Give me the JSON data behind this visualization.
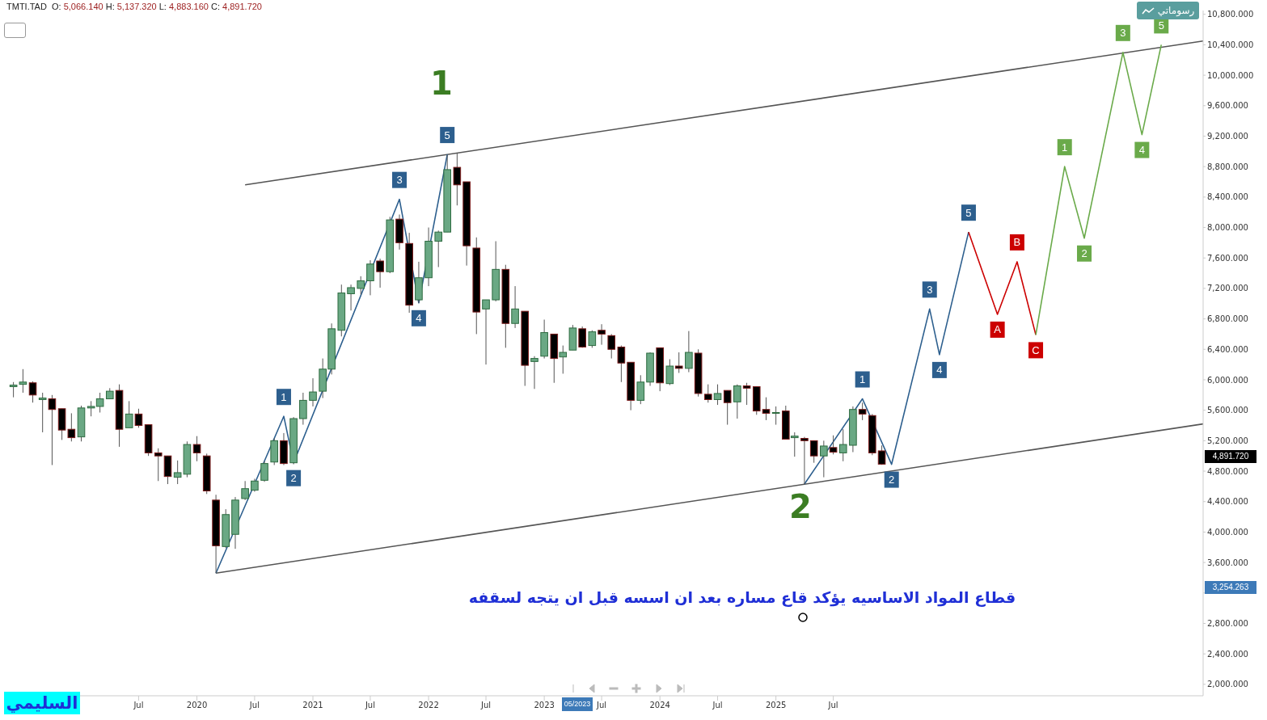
{
  "chart_data": {
    "type": "candlestick",
    "title": "TMTI.TAD  O: 5,066.140 H: 5,137.320 L: 4,883.160 C: 4,891.720",
    "x": [
      "2018-06",
      "2018-07",
      "2018-08",
      "2018-09",
      "2018-10",
      "2018-11",
      "2018-12",
      "2019-01",
      "2019-02",
      "2019-03",
      "2019-04",
      "2019-05",
      "2019-06",
      "2019-07",
      "2019-08",
      "2019-09",
      "2019-10",
      "2019-11",
      "2019-12",
      "2020-01",
      "2020-02",
      "2020-03",
      "2020-04",
      "2020-05",
      "2020-06",
      "2020-07",
      "2020-08",
      "2020-09",
      "2020-10",
      "2020-11",
      "2020-12",
      "2021-01",
      "2021-02",
      "2021-03",
      "2021-04",
      "2021-05",
      "2021-06",
      "2021-07",
      "2021-08",
      "2021-09",
      "2021-10",
      "2021-11",
      "2021-12",
      "2022-01",
      "2022-02",
      "2022-03",
      "2022-04",
      "2022-05",
      "2022-06",
      "2022-07",
      "2022-08",
      "2022-09",
      "2022-10",
      "2022-11",
      "2022-12",
      "2023-01",
      "2023-02",
      "2023-03",
      "2023-04",
      "2023-05",
      "2023-06",
      "2023-07",
      "2023-08",
      "2023-09",
      "2023-10",
      "2023-11",
      "2023-12",
      "2024-01",
      "2024-02",
      "2024-03",
      "2024-04",
      "2024-05",
      "2024-06",
      "2024-07",
      "2024-08",
      "2024-09",
      "2024-10",
      "2024-11",
      "2024-12",
      "2025-01",
      "2025-02",
      "2025-03",
      "2025-04",
      "2025-05",
      "2025-06",
      "2025-07",
      "2025-08",
      "2025-09",
      "2025-10",
      "2025-11",
      "2025-12"
    ],
    "ohlc": [
      [
        5910,
        5970,
        5770,
        5930
      ],
      [
        5940,
        6140,
        5830,
        5970
      ],
      [
        5960,
        5980,
        5700,
        5800
      ],
      [
        5740,
        5830,
        5310,
        5760
      ],
      [
        5750,
        5800,
        4880,
        5610
      ],
      [
        5620,
        5620,
        5210,
        5340
      ],
      [
        5350,
        5560,
        5190,
        5240
      ],
      [
        5250,
        5660,
        5190,
        5630
      ],
      [
        5630,
        5720,
        5520,
        5650
      ],
      [
        5650,
        5830,
        5570,
        5750
      ],
      [
        5750,
        5890,
        5750,
        5850
      ],
      [
        5860,
        5940,
        5120,
        5350
      ],
      [
        5370,
        5720,
        5370,
        5550
      ],
      [
        5550,
        5620,
        5370,
        5400
      ],
      [
        5410,
        5410,
        5000,
        5040
      ],
      [
        5040,
        5100,
        4670,
        5000
      ],
      [
        5000,
        5000,
        4630,
        4730
      ],
      [
        4720,
        4940,
        4630,
        4780
      ],
      [
        4760,
        5190,
        4720,
        5150
      ],
      [
        5150,
        5260,
        4930,
        5040
      ],
      [
        5000,
        5030,
        4500,
        4540
      ],
      [
        4420,
        4490,
        3460,
        3820
      ],
      [
        3810,
        4300,
        3790,
        4230
      ],
      [
        3970,
        4460,
        3780,
        4420
      ],
      [
        4440,
        4670,
        4420,
        4570
      ],
      [
        4550,
        4700,
        4530,
        4670
      ],
      [
        4680,
        4930,
        4660,
        4900
      ],
      [
        4920,
        5230,
        4880,
        5200
      ],
      [
        5200,
        5300,
        4880,
        4900
      ],
      [
        4910,
        5510,
        4890,
        5490
      ],
      [
        5490,
        5830,
        5410,
        5730
      ],
      [
        5730,
        6020,
        5650,
        5840
      ],
      [
        5850,
        6280,
        5760,
        6140
      ],
      [
        6140,
        6740,
        6070,
        6670
      ],
      [
        6650,
        7250,
        6570,
        7140
      ],
      [
        7130,
        7250,
        6910,
        7210
      ],
      [
        7200,
        7360,
        7120,
        7300
      ],
      [
        7300,
        7570,
        7110,
        7520
      ],
      [
        7560,
        7590,
        7210,
        7420
      ],
      [
        7420,
        8140,
        7400,
        8100
      ],
      [
        8110,
        8170,
        7710,
        7800
      ],
      [
        7790,
        7930,
        6880,
        6980
      ],
      [
        7050,
        7550,
        7010,
        7340
      ],
      [
        7340,
        8000,
        7230,
        7820
      ],
      [
        7820,
        7960,
        7480,
        7940
      ],
      [
        7940,
        8950,
        7940,
        8760
      ],
      [
        8790,
        8980,
        8290,
        8560
      ],
      [
        8600,
        8600,
        7500,
        7760
      ],
      [
        7730,
        7870,
        6600,
        6890
      ],
      [
        6930,
        7050,
        6200,
        7050
      ],
      [
        7050,
        7820,
        7030,
        7450
      ],
      [
        7450,
        7510,
        6420,
        6740
      ],
      [
        6740,
        7230,
        6680,
        6930
      ],
      [
        6900,
        6900,
        5920,
        6190
      ],
      [
        6240,
        6310,
        5880,
        6280
      ],
      [
        6310,
        6790,
        6280,
        6620
      ],
      [
        6600,
        6600,
        5960,
        6280
      ],
      [
        6300,
        6450,
        6080,
        6360
      ],
      [
        6390,
        6720,
        6390,
        6680
      ],
      [
        6670,
        6700,
        6420,
        6430
      ],
      [
        6450,
        6650,
        6420,
        6630
      ],
      [
        6650,
        6730,
        6460,
        6600
      ],
      [
        6580,
        6600,
        6280,
        6400
      ],
      [
        6430,
        6450,
        5970,
        6220
      ],
      [
        6230,
        6230,
        5600,
        5730
      ],
      [
        5730,
        6060,
        5680,
        5970
      ],
      [
        5970,
        6360,
        5920,
        6350
      ],
      [
        6420,
        6420,
        5850,
        5960
      ],
      [
        5950,
        6270,
        5930,
        6180
      ],
      [
        6180,
        6360,
        6090,
        6150
      ],
      [
        6150,
        6640,
        6100,
        6360
      ],
      [
        6350,
        6400,
        5780,
        5820
      ],
      [
        5810,
        5940,
        5700,
        5740
      ],
      [
        5740,
        5940,
        5670,
        5820
      ],
      [
        5860,
        5860,
        5410,
        5700
      ],
      [
        5710,
        5940,
        5490,
        5920
      ],
      [
        5920,
        5960,
        5670,
        5890
      ],
      [
        5910,
        5910,
        5540,
        5590
      ],
      [
        5610,
        5770,
        5470,
        5560
      ],
      [
        5560,
        5650,
        5410,
        5570
      ],
      [
        5590,
        5660,
        5220,
        5220
      ],
      [
        5240,
        5310,
        4990,
        5260
      ],
      [
        5230,
        5250,
        4630,
        5200
      ],
      [
        5200,
        5200,
        4910,
        5000
      ],
      [
        5000,
        5200,
        4720,
        5130
      ],
      [
        5110,
        5270,
        5020,
        5050
      ],
      [
        5040,
        5350,
        4930,
        5150
      ],
      [
        5140,
        5650,
        5050,
        5610
      ],
      [
        5610,
        5700,
        5470,
        5550
      ],
      [
        5530,
        5550,
        5010,
        5040
      ],
      [
        5066.14,
        5137.32,
        4883.16,
        4891.72
      ]
    ],
    "series": [
      {
        "type": "line",
        "color": "#555555",
        "x": [
          "2020-06",
          "2028-09-10"
        ],
        "values": [
          8560,
          10450
        ]
      },
      {
        "type": "line",
        "color": "#555555",
        "x": [
          "2020-03",
          "2028-09-10"
        ],
        "values": [
          3460,
          5420
        ]
      },
      {
        "type": "line",
        "color": "#2d5f8e",
        "x": [
          "2020-03",
          "2020-10",
          "2020-11",
          "2021-10",
          "2021-12",
          "2022-03"
        ],
        "values": [
          3460,
          5520,
          4910,
          8370,
          7010,
          8960
        ]
      },
      {
        "type": "line",
        "color": "#2d5f8e",
        "x": [
          "2025-04",
          "2025-10",
          "2026-01",
          "2026-05",
          "2026-06",
          "2026-09"
        ],
        "values": [
          4630,
          5750,
          4890,
          6930,
          6330,
          7940
        ]
      },
      {
        "type": "line",
        "color": "#cc0000",
        "x": [
          "2026-09",
          "2026-12",
          "2027-02",
          "2027-04"
        ],
        "values": [
          7940,
          6860,
          7550,
          6590
        ]
      },
      {
        "type": "line",
        "color": "#6aaa4a",
        "x": [
          "2027-04",
          "2027-07",
          "2027-09",
          "2028-01",
          "2028-03",
          "2028-05"
        ],
        "values": [
          6590,
          8800,
          7860,
          10300,
          9220,
          10400
        ]
      }
    ],
    "annotations": [
      "قطاع المواد الاساسيه يؤكد قاع مساره بعد ان اسسه قبل ان يتجه لسقفه",
      "السليمي",
      "رسوماتي",
      "1",
      "2",
      "3,254.263",
      "05/2023",
      "4,891.720",
      {
        "text": "1",
        "x": "2020-10",
        "y": 5520
      },
      {
        "text": "2",
        "x": "2020-11",
        "y": 4910
      },
      {
        "text": "3",
        "x": "2021-10",
        "y": 8370
      },
      {
        "text": "4",
        "x": "2021-12",
        "y": 7010
      },
      {
        "text": "5",
        "x": "2022-03",
        "y": 8960
      },
      {
        "text": "1",
        "x": "2025-10",
        "y": 5750
      },
      {
        "text": "2",
        "x": "2026-01",
        "y": 4890
      },
      {
        "text": "3",
        "x": "2026-05",
        "y": 6930
      },
      {
        "text": "4",
        "x": "2026-06",
        "y": 6330
      },
      {
        "text": "5",
        "x": "2026-09",
        "y": 7940
      },
      {
        "text": "A",
        "x": "2026-12",
        "y": 6860
      },
      {
        "text": "B",
        "x": "2027-02",
        "y": 7550
      },
      {
        "text": "C",
        "x": "2027-04",
        "y": 6590
      },
      {
        "text": "1",
        "x": "2027-07",
        "y": 8800
      },
      {
        "text": "2",
        "x": "2027-09",
        "y": 7860
      },
      {
        "text": "3",
        "x": "2028-01",
        "y": 10300
      },
      {
        "text": "4",
        "x": "2028-03",
        "y": 9220
      },
      {
        "text": "5",
        "x": "2028-05",
        "y": 10400
      }
    ],
    "xlim": [
      "2018-05-10",
      "2028-09-10"
    ],
    "xticks": [
      {
        "value": "2019-07",
        "label": "Jul"
      },
      {
        "value": "2020-01",
        "label": "2020"
      },
      {
        "value": "2020-07",
        "label": "Jul"
      },
      {
        "value": "2021-01",
        "label": "2021"
      },
      {
        "value": "2021-07",
        "label": "Jul"
      },
      {
        "value": "2022-01",
        "label": "2022"
      },
      {
        "value": "2022-07",
        "label": "Jul"
      },
      {
        "value": "2023-01",
        "label": "2023"
      },
      {
        "value": "2023-07",
        "label": "Jul"
      },
      {
        "value": "2024-01",
        "label": "2024"
      },
      {
        "value": "2024-07",
        "label": "Jul"
      },
      {
        "value": "2025-01",
        "label": "2025"
      },
      {
        "value": "2025-07",
        "label": "Jul"
      }
    ],
    "ylim": [
      1850,
      10850
    ],
    "yticks": [
      {
        "value": 2000,
        "label": "2,000.000"
      },
      {
        "value": 2400,
        "label": "2,400.000"
      },
      {
        "value": 2800,
        "label": "2,800.000"
      },
      {
        "value": 3200,
        "label": null
      },
      {
        "value": 3600,
        "label": "3,600.000"
      },
      {
        "value": 4000,
        "label": "4,000.000"
      },
      {
        "value": 4400,
        "label": "4,400.000"
      },
      {
        "value": 4800,
        "label": "4,800.000"
      },
      {
        "value": 5200,
        "label": "5,200.000"
      },
      {
        "value": 5600,
        "label": "5,600.000"
      },
      {
        "value": 6000,
        "label": "6,000.000"
      },
      {
        "value": 6400,
        "label": "6,400.000"
      },
      {
        "value": 6800,
        "label": "6,800.000"
      },
      {
        "value": 7200,
        "label": "7,200.000"
      },
      {
        "value": 7600,
        "label": "7,600.000"
      },
      {
        "value": 8000,
        "label": "8,000.000"
      },
      {
        "value": 8400,
        "label": "8,400.000"
      },
      {
        "value": 8800,
        "label": "8,800.000"
      },
      {
        "value": 9200,
        "label": "9,200.000"
      },
      {
        "value": 9600,
        "label": "9,600.000"
      },
      {
        "value": 10000,
        "label": "10,000.000"
      },
      {
        "value": 10400,
        "label": "10,400.000"
      },
      {
        "value": 10800,
        "label": "10,800.000"
      }
    ]
  }
}
